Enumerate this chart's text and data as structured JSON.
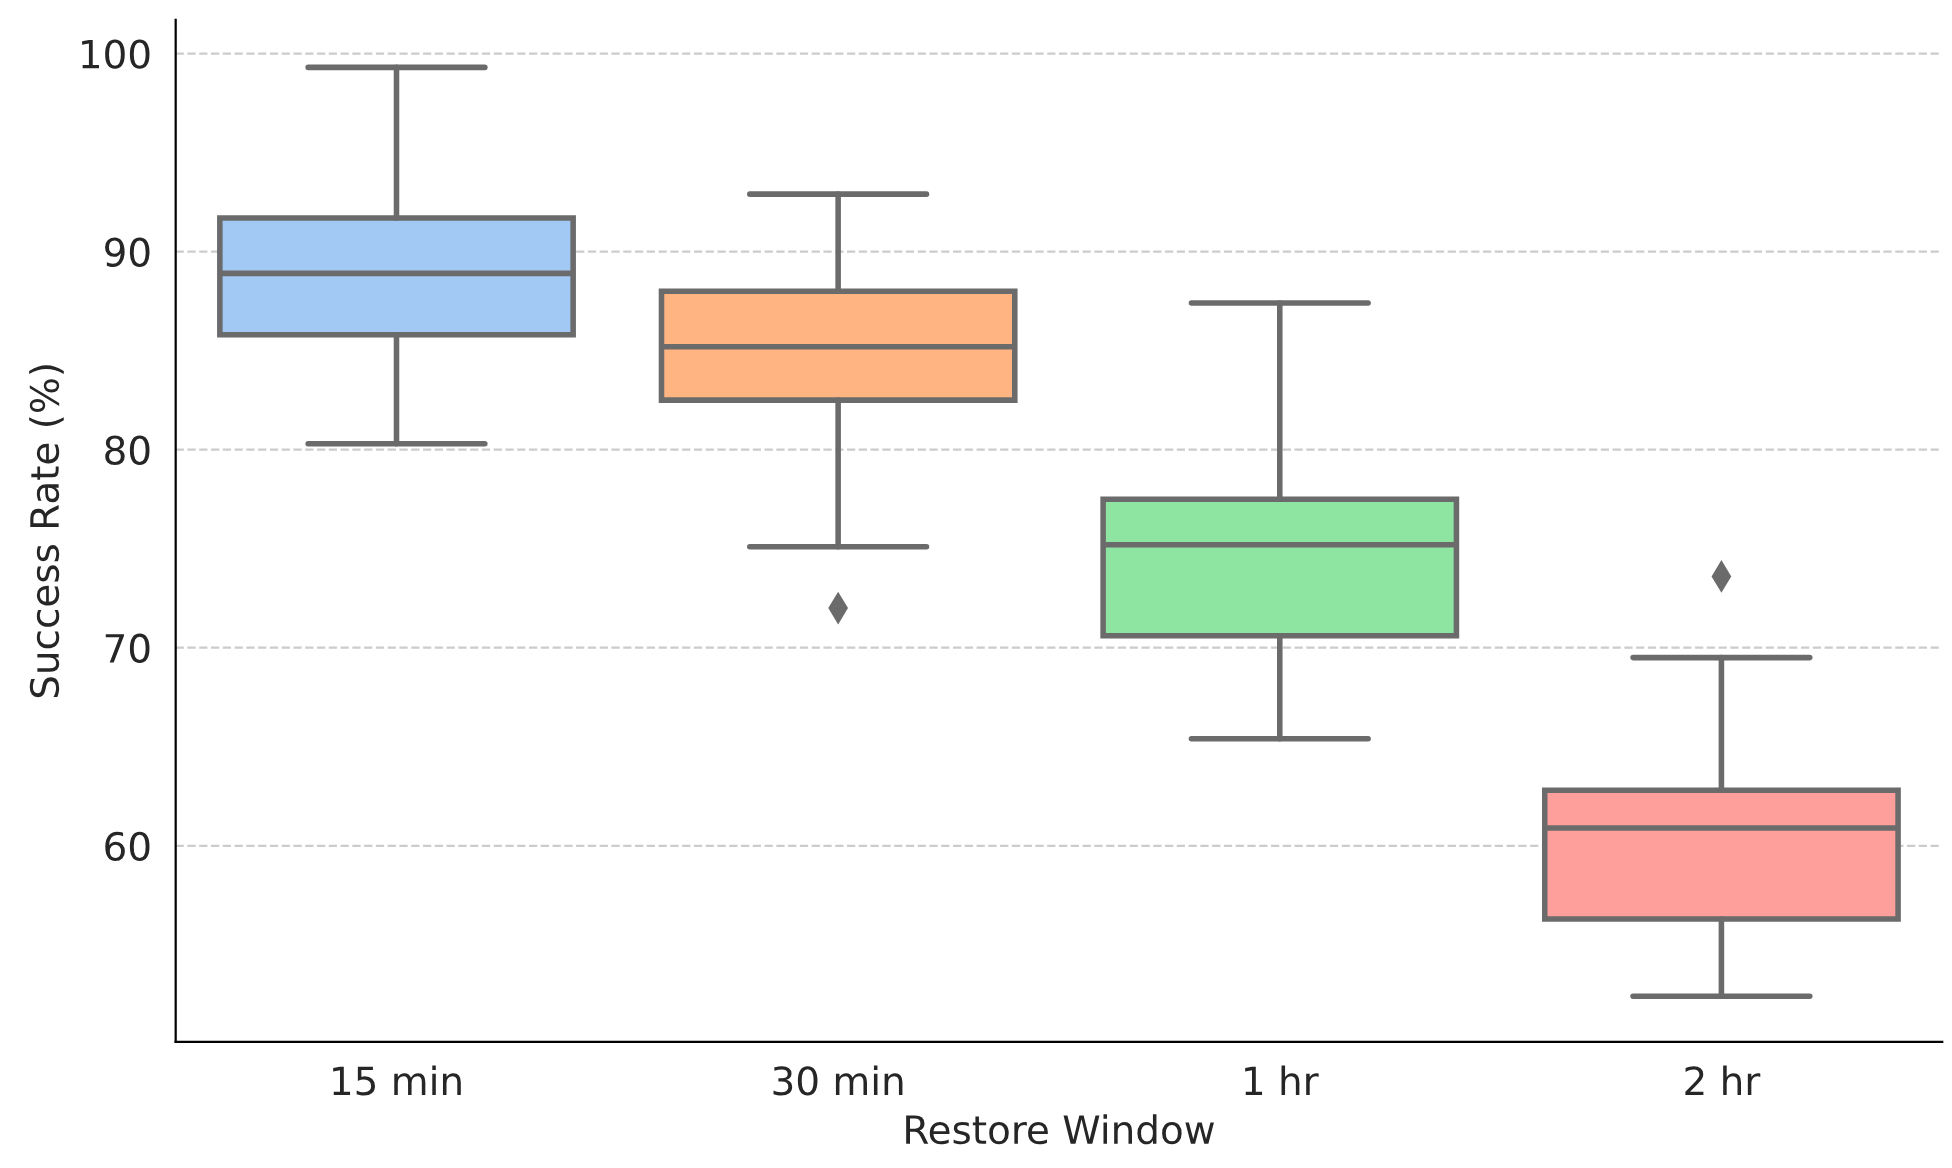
{
  "chart_data": {
    "type": "box",
    "xlabel": "Restore Window",
    "ylabel": "Success Rate (%)",
    "categories": [
      "15 min",
      "30 min",
      "1 hr",
      "2 hr"
    ],
    "colors": [
      "#a1c9f4",
      "#ffb482",
      "#8de5a1",
      "#ff9f9b"
    ],
    "boxes": [
      {
        "low": 80.3,
        "q1": 85.8,
        "median": 88.9,
        "q3": 91.7,
        "high": 99.3
      },
      {
        "low": 75.1,
        "q1": 82.5,
        "median": 85.2,
        "q3": 88.0,
        "high": 92.9,
        "outliers": [
          72.0
        ]
      },
      {
        "low": 65.4,
        "q1": 70.6,
        "median": 75.2,
        "q3": 77.5,
        "high": 87.4
      },
      {
        "low": 52.4,
        "q1": 56.3,
        "median": 60.9,
        "q3": 62.8,
        "high": 69.5,
        "outliers": [
          73.6
        ]
      }
    ],
    "ylim": [
      50.1,
      101.7
    ],
    "yticks": [
      60,
      70,
      80,
      90,
      100
    ],
    "grid": "y",
    "marker": "diamond"
  }
}
